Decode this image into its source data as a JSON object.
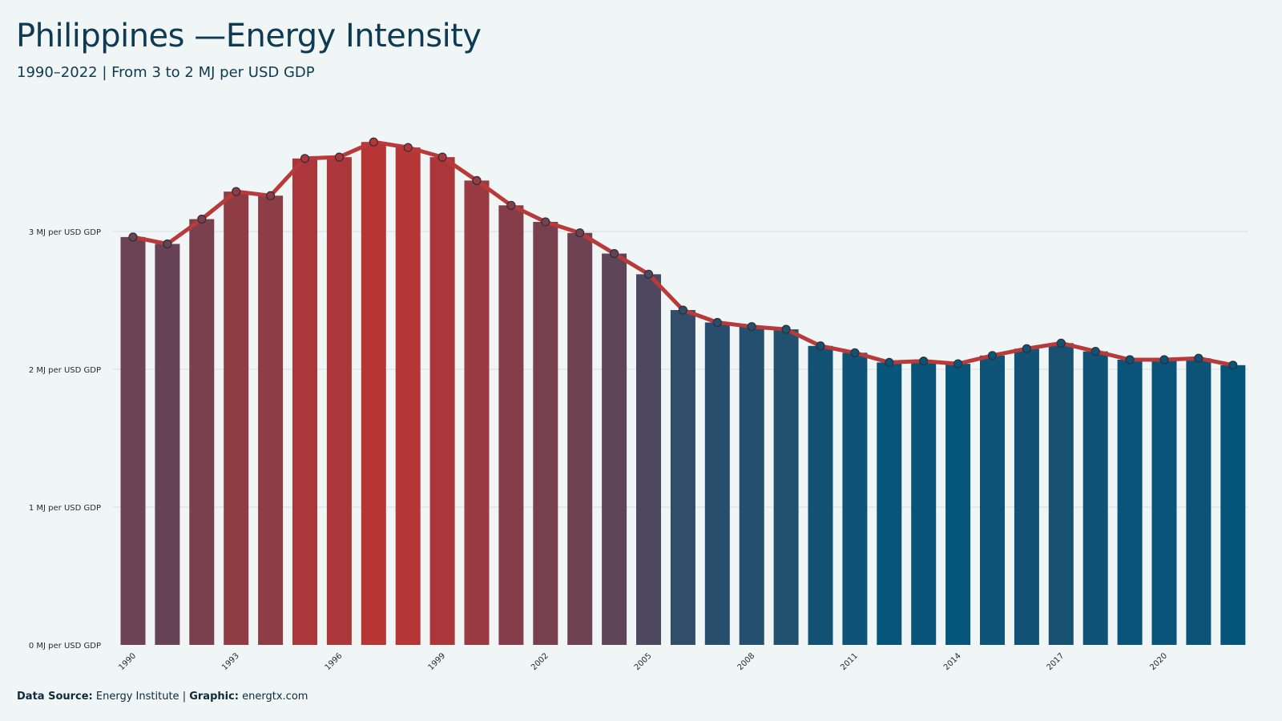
{
  "header": {
    "title": "Philippines —Energy Intensity",
    "subtitle": "1990–2022 | From 3 to 2 MJ per USD GDP"
  },
  "caption": {
    "source_label": "Data Source:",
    "source_value": "Energy Institute",
    "separator": "|",
    "graphic_label": "Graphic:",
    "graphic_value": "energtx.com"
  },
  "colors": {
    "background": "#f0f5f5",
    "line": "#b83a3a",
    "high": "#b83535",
    "low": "#05557a",
    "grid": "#dde4e6"
  },
  "chart_data": {
    "type": "bar",
    "overlay": "line with markers",
    "title": "Philippines —Energy Intensity",
    "subtitle": "1990–2022 | From 3 to 2 MJ per USD GDP",
    "xlabel": "",
    "ylabel": "",
    "ylim": [
      0,
      3.8
    ],
    "y_ticks": [
      0,
      1,
      2,
      3
    ],
    "y_tick_labels": [
      "0 MJ per USD GDP",
      "1 MJ per USD GDP",
      "2 MJ per USD GDP",
      "3 MJ per USD GDP"
    ],
    "x_tick_labels": [
      "1990",
      "1993",
      "1996",
      "1999",
      "2002",
      "2005",
      "2008",
      "2011",
      "2014",
      "2017",
      "2020"
    ],
    "grid": "horizontal",
    "legend": "none",
    "categories": [
      1990,
      1991,
      1992,
      1993,
      1994,
      1995,
      1996,
      1997,
      1998,
      1999,
      2000,
      2001,
      2002,
      2003,
      2004,
      2005,
      2006,
      2007,
      2008,
      2009,
      2010,
      2011,
      2012,
      2013,
      2014,
      2015,
      2016,
      2017,
      2018,
      2019,
      2020,
      2021,
      2022
    ],
    "values": [
      2.96,
      2.91,
      3.09,
      3.29,
      3.26,
      3.53,
      3.54,
      3.65,
      3.61,
      3.54,
      3.37,
      3.19,
      3.07,
      2.99,
      2.84,
      2.69,
      2.43,
      2.34,
      2.31,
      2.29,
      2.17,
      2.12,
      2.05,
      2.06,
      2.04,
      2.1,
      2.15,
      2.19,
      2.13,
      2.07,
      2.07,
      2.08,
      2.03
    ]
  }
}
